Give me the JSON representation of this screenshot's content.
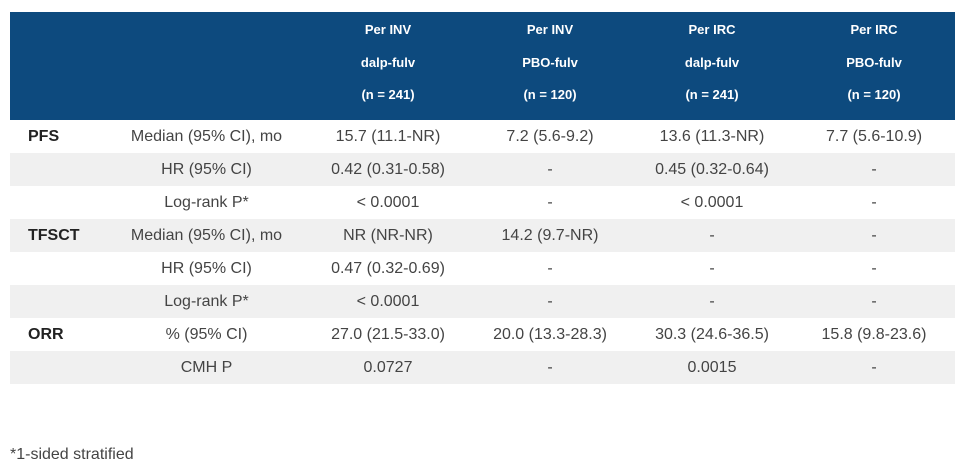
{
  "table": {
    "columns": [
      {
        "line1": "Per INV",
        "line2": "dalp-fulv",
        "line3": "(n = 241)"
      },
      {
        "line1": "Per INV",
        "line2": "PBO-fulv",
        "line3": "(n = 120)"
      },
      {
        "line1": "Per IRC",
        "line2": "dalp-fulv",
        "line3": "(n = 241)"
      },
      {
        "line1": "Per IRC",
        "line2": "PBO-fulv",
        "line3": "(n = 120)"
      }
    ],
    "rows": [
      {
        "param": "PFS",
        "stat": "Median (95% CI), mo",
        "values": [
          "15.7 (11.1-NR)",
          "7.2 (5.6-9.2)",
          "13.6 (11.3-NR)",
          "7.7 (5.6-10.9)"
        ]
      },
      {
        "param": "",
        "stat": "HR (95% CI)",
        "values": [
          "0.42 (0.31-0.58)",
          "-",
          "0.45 (0.32-0.64)",
          "-"
        ]
      },
      {
        "param": "",
        "stat": "Log-rank P*",
        "values": [
          "< 0.0001",
          "-",
          "< 0.0001",
          "-"
        ]
      },
      {
        "param": "TFSCT",
        "stat": "Median (95% CI), mo",
        "values": [
          "NR (NR-NR)",
          "14.2 (9.7-NR)",
          "-",
          "-"
        ]
      },
      {
        "param": "",
        "stat": "HR (95% CI)",
        "values": [
          "0.47 (0.32-0.69)",
          "-",
          "-",
          "-"
        ]
      },
      {
        "param": "",
        "stat": "Log-rank P*",
        "values": [
          "< 0.0001",
          "-",
          "-",
          "-"
        ]
      },
      {
        "param": "ORR",
        "stat": "% (95% CI)",
        "values": [
          "27.0 (21.5-33.0)",
          "20.0 (13.3-28.3)",
          "30.3 (24.6-36.5)",
          "15.8 (9.8-23.6)"
        ]
      },
      {
        "param": "",
        "stat": "CMH P",
        "values": [
          "0.0727",
          "-",
          "0.0015",
          "-"
        ]
      }
    ]
  },
  "footnote": "*1-sided stratified"
}
